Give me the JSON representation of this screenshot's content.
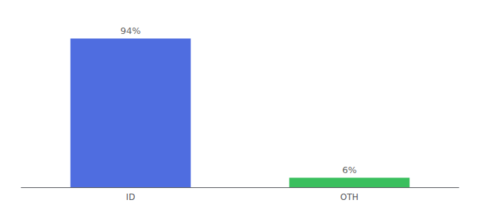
{
  "chart_data": {
    "type": "bar",
    "categories": [
      "ID",
      "OTH"
    ],
    "values": [
      94,
      6
    ],
    "value_labels": [
      "94%",
      "6%"
    ],
    "colors": [
      "#4f6de0",
      "#3abf5e"
    ],
    "ylim": [
      0,
      105
    ],
    "data_labels": true,
    "tick_labels": "x",
    "grid": false
  }
}
